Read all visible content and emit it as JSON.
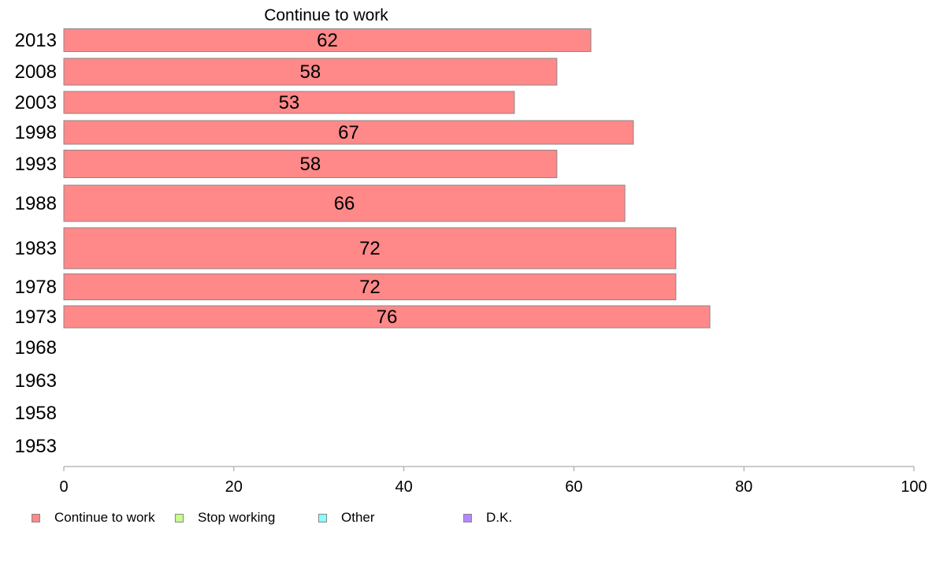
{
  "chart_data": {
    "type": "bar",
    "orientation": "horizontal",
    "title": "Continue to work",
    "xlabel": "",
    "ylabel": "",
    "xlim": [
      0,
      100
    ],
    "xticks": [
      "0",
      "20",
      "40",
      "60",
      "80",
      "100"
    ],
    "grid": false,
    "legend_position": "bottom",
    "categories": [
      "2013",
      "2008",
      "2003",
      "1998",
      "1993",
      "1988",
      "1983",
      "1978",
      "1973",
      "1968",
      "1963",
      "1958",
      "1953"
    ],
    "series": [
      {
        "name": "Continue to work",
        "color": "#ff8888",
        "values": [
          62,
          58,
          53,
          67,
          58,
          66,
          72,
          72,
          76,
          null,
          null,
          null,
          null
        ],
        "labels": [
          "62",
          "58",
          "53",
          "67",
          "58",
          "66",
          "72",
          "72",
          "76",
          "",
          "",
          "",
          ""
        ]
      }
    ],
    "legend": [
      {
        "label": "Continue to work",
        "color": "#ff8888"
      },
      {
        "label": "Stop working",
        "color": "#c6ff88"
      },
      {
        "label": "Other",
        "color": "#88ffff"
      },
      {
        "label": "D.K.",
        "color": "#b388ff"
      }
    ]
  }
}
